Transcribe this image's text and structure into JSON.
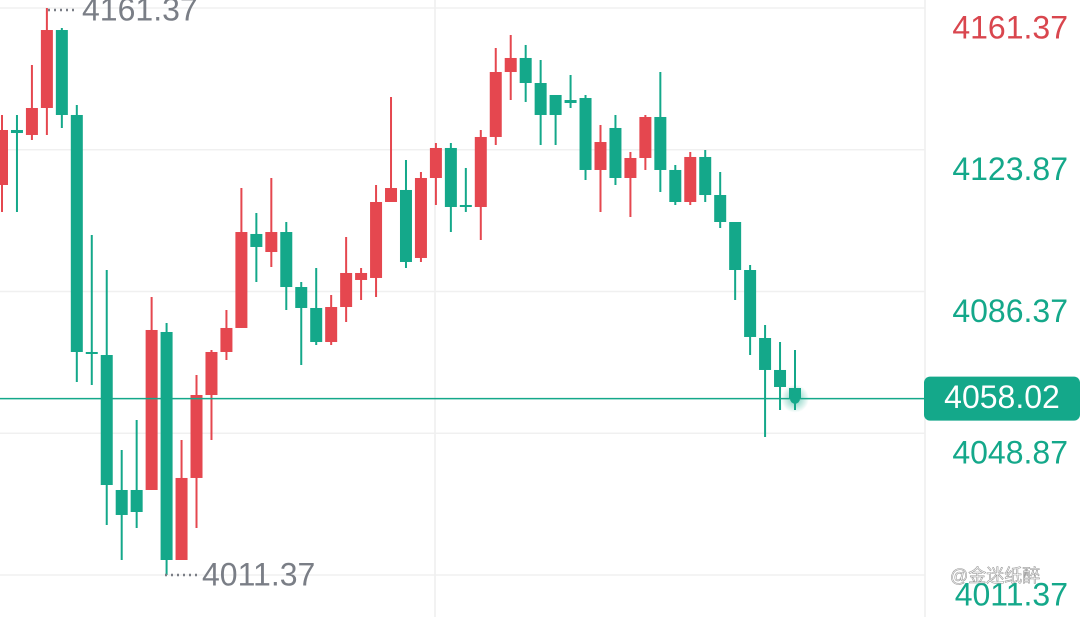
{
  "chart_data": {
    "type": "candlestick",
    "up_color": "#e5474f",
    "down_color": "#14a88a",
    "open": [
      4114.55,
      4129.1,
      4127.78,
      4134.92,
      4155.55,
      4133.07,
      4070.37,
      4069.57,
      4033.86,
      4033.86,
      4033.86,
      4075.66,
      4015.34,
      4037.04,
      4058.99,
      4070.37,
      4076.72,
      4101.59,
      4096.82,
      4102.11,
      4087.56,
      4082.01,
      4073.01,
      4082.27,
      4089.42,
      4089.95,
      4110.05,
      4113.23,
      4095.24,
      4116.4,
      4124.34,
      4109.26,
      4108.73,
      4127.25,
      4144.44,
      4148.15,
      4141.53,
      4138.36,
      4137.03,
      4137.56,
      4118.52,
      4129.63,
      4116.4,
      4121.69,
      4132.54,
      4118.52,
      4110.05,
      4121.96,
      4111.9,
      4104.76,
      4092.06,
      4074.07,
      4065.61,
      4060.84
    ],
    "high": [
      4133.07,
      4133.07,
      4146.29,
      4161.37,
      4156.08,
      4135.71,
      4101.32,
      4092.06,
      4044.44,
      4052.38,
      4084.92,
      4078.04,
      4047.09,
      4064.28,
      4070.9,
      4081.48,
      4113.75,
      4107.14,
      4116.4,
      4104.76,
      4088.89,
      4092.59,
      4085.45,
      4100.79,
      4092.59,
      4114.55,
      4137.83,
      4121.16,
      4117.99,
      4125.66,
      4125.66,
      4119.05,
      4129.1,
      4150.79,
      4154.23,
      4151.59,
      4147.62,
      4138.36,
      4143.65,
      4138.36,
      4130.42,
      4133.07,
      4123.28,
      4133.07,
      4144.44,
      4119.84,
      4123.28,
      4123.81,
      4117.99,
      4104.76,
      4093.38,
      4077.51,
      4073.01,
      4070.9
    ],
    "low": [
      4107.41,
      4107.41,
      4126.45,
      4127.78,
      4129.63,
      4062.43,
      4061.64,
      4024.6,
      4015.34,
      4023.81,
      4033.86,
      4011.37,
      4015.34,
      4023.81,
      4047.09,
      4068.25,
      4076.72,
      4088.89,
      4092.86,
      4081.48,
      4066.93,
      4072.22,
      4072.22,
      4078.3,
      4084.12,
      4084.92,
      4110.58,
      4092.59,
      4094.18,
      4109.26,
      4102.11,
      4107.41,
      4100.0,
      4125.13,
      4137.03,
      4136.51,
      4125.13,
      4125.13,
      4134.92,
      4115.87,
      4107.41,
      4114.55,
      4106.08,
      4118.52,
      4112.7,
      4109.26,
      4109.26,
      4110.05,
      4103.17,
      4084.12,
      4069.57,
      4047.88,
      4055.02,
      4055.02
    ],
    "close": [
      4129.1,
      4128.3,
      4134.92,
      4155.55,
      4133.07,
      4070.37,
      4069.84,
      4035.18,
      4027.25,
      4028.04,
      4076.19,
      4015.34,
      4037.04,
      4058.99,
      4070.37,
      4076.72,
      4102.11,
      4098.15,
      4102.11,
      4087.56,
      4082.01,
      4073.01,
      4082.27,
      4091.27,
      4091.27,
      4110.05,
      4113.75,
      4094.18,
      4116.4,
      4124.34,
      4108.73,
      4108.73,
      4127.25,
      4144.44,
      4148.15,
      4141.53,
      4133.07,
      4133.07,
      4136.24,
      4118.52,
      4125.92,
      4116.4,
      4121.69,
      4132.54,
      4118.52,
      4110.05,
      4121.96,
      4111.9,
      4104.76,
      4092.06,
      4074.34,
      4065.61,
      4061.11,
      4058.02
    ],
    "ylim": [
      4000.26,
      4163.49
    ],
    "yticks": [
      4161.37,
      4123.87,
      4086.37,
      4048.87,
      4011.37
    ],
    "ytick_colors": [
      "#d9464e",
      "#14a88a",
      "#14a88a",
      "#14a88a",
      "#14a88a"
    ],
    "grid": true,
    "max_marker": 4161.37,
    "min_marker": 4011.37,
    "last_price": 4058.02,
    "last_price_color": "#14a88a",
    "marker_color": "#7a7e86",
    "watermark": "@金迷纸醉"
  }
}
